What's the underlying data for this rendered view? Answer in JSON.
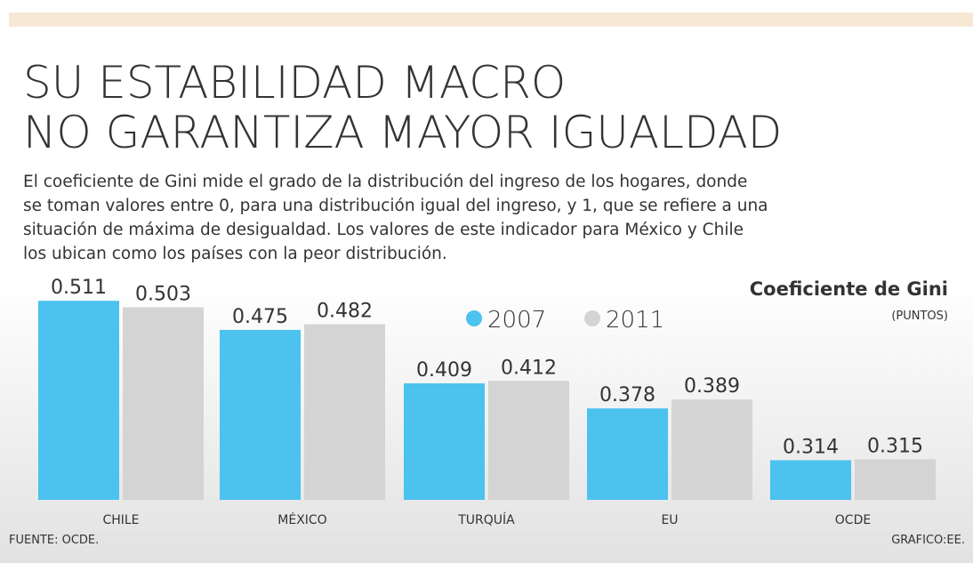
{
  "chart_data": {
    "type": "bar",
    "title": [
      "SU ESTABILIDAD MACRO",
      "NO GARANTIZA MAYOR IGUALDAD"
    ],
    "subtitle": [
      "El coeficiente de Gini mide el grado de la distribución del ingreso de los hogares, donde",
      "se toman valores entre 0, para una distribución igual del ingreso, y 1, que se refiere a una",
      "situación de máxima de desigualdad. Los valores de este indicador para México y Chile",
      "los ubican como los países con la peor distribución."
    ],
    "chart_title": "Coeficiente de Gini",
    "unit": "(PUNTOS)",
    "categories": [
      "CHILE",
      "MÉXICO",
      "TURQUÍA",
      "EU",
      "OCDE"
    ],
    "series": [
      {
        "name": "2007",
        "color": "#4cc2ee",
        "values": [
          0.511,
          0.475,
          0.409,
          0.378,
          0.314
        ]
      },
      {
        "name": "2011",
        "color": "#d4d4d4",
        "values": [
          0.503,
          0.482,
          0.412,
          0.389,
          0.315
        ]
      }
    ],
    "ylim": [
      0.265,
      0.52
    ],
    "source": "FUENTE: OCDE.",
    "credit": "GRAFICO:EE."
  }
}
